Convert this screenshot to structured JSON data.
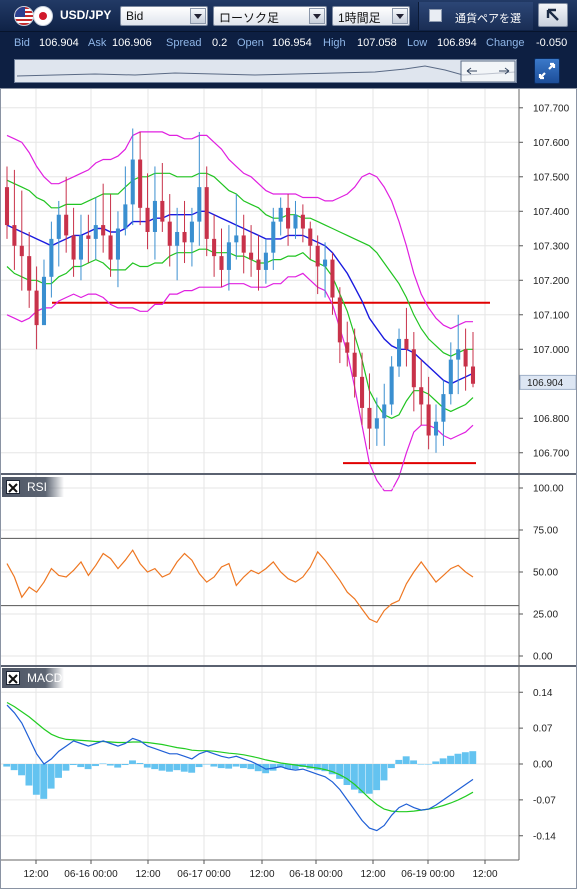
{
  "toolbar": {
    "pair": "USD/JPY",
    "price_type": "Bid",
    "chart_type": "ローソク足",
    "period": "1時間足",
    "pair_toggle_label": "通貨ペアを選"
  },
  "quote": {
    "bid_label": "Bid",
    "bid": "106.904",
    "ask_label": "Ask",
    "ask": "106.906",
    "spread_label": "Spread",
    "spread": "0.2",
    "open_label": "Open",
    "open": "106.954",
    "high_label": "High",
    "high": "107.058",
    "low_label": "Low",
    "low": "106.894",
    "change_label": "Change",
    "change": "-0.050"
  },
  "panels": {
    "rsi_title": "RSI",
    "macd_title": "MACD"
  },
  "colors": {
    "up_candle": "#3a8fd0",
    "down_candle": "#c8324a",
    "bollinger_outer": "#e020e0",
    "bollinger_inner": "#21c421",
    "sma": "#1a1adf",
    "hline": "#e00000",
    "rsi": "#ee7722",
    "macd_line": "#1f5fd6",
    "signal_line": "#22cc22",
    "histogram": "#64c3f0"
  },
  "chart_data": [
    {
      "type": "candlestick",
      "y_ticks": [
        "107.700",
        "107.600",
        "107.500",
        "107.400",
        "107.300",
        "107.200",
        "107.100",
        "107.000",
        "106.800",
        "106.700"
      ],
      "ylim": [
        106.65,
        107.74
      ],
      "current_price": "106.904",
      "x_ticks": [
        "12:00",
        "06-16 00:00",
        "12:00",
        "06-17 00:00",
        "12:00",
        "06-18 00:00",
        "12:00",
        "06-19 00:00",
        "12:00"
      ],
      "horizontal_lines": [
        107.135,
        106.67
      ],
      "candles": [
        [
          107.47,
          107.53,
          107.32,
          107.36
        ],
        [
          107.36,
          107.52,
          107.23,
          107.3
        ],
        [
          107.3,
          107.46,
          107.17,
          107.27
        ],
        [
          107.27,
          107.34,
          107.12,
          107.17
        ],
        [
          107.17,
          107.24,
          107.0,
          107.07
        ],
        [
          107.07,
          107.26,
          107.08,
          107.21
        ],
        [
          107.21,
          107.37,
          107.15,
          107.32
        ],
        [
          107.32,
          107.43,
          107.24,
          107.39
        ],
        [
          107.39,
          107.5,
          107.28,
          107.33
        ],
        [
          107.33,
          107.41,
          107.21,
          107.26
        ],
        [
          107.26,
          107.39,
          107.2,
          107.33
        ],
        [
          107.33,
          107.39,
          107.25,
          107.32
        ],
        [
          107.32,
          107.44,
          107.26,
          107.36
        ],
        [
          107.36,
          107.48,
          107.28,
          107.33
        ],
        [
          107.33,
          107.45,
          107.21,
          107.26
        ],
        [
          107.26,
          107.4,
          107.18,
          107.35
        ],
        [
          107.35,
          107.53,
          107.33,
          107.42
        ],
        [
          107.42,
          107.64,
          107.36,
          107.55
        ],
        [
          107.55,
          107.63,
          107.36,
          107.41
        ],
        [
          107.41,
          107.51,
          107.29,
          107.34
        ],
        [
          107.34,
          107.53,
          107.26,
          107.43
        ],
        [
          107.43,
          107.54,
          107.34,
          107.37
        ],
        [
          107.37,
          107.45,
          107.24,
          107.3
        ],
        [
          107.3,
          107.41,
          107.2,
          107.34
        ],
        [
          107.34,
          107.43,
          107.25,
          107.31
        ],
        [
          107.31,
          107.41,
          107.24,
          107.37
        ],
        [
          107.37,
          107.63,
          107.3,
          107.47
        ],
        [
          107.47,
          107.53,
          107.27,
          107.32
        ],
        [
          107.32,
          107.39,
          107.21,
          107.27
        ],
        [
          107.27,
          107.35,
          107.18,
          107.23
        ],
        [
          107.23,
          107.36,
          107.17,
          107.31
        ],
        [
          107.31,
          107.45,
          107.26,
          107.33
        ],
        [
          107.33,
          107.39,
          107.22,
          107.28
        ],
        [
          107.28,
          107.36,
          107.21,
          107.26
        ],
        [
          107.26,
          107.33,
          107.17,
          107.23
        ],
        [
          107.23,
          107.32,
          107.19,
          107.28
        ],
        [
          107.28,
          107.41,
          107.23,
          107.37
        ],
        [
          107.37,
          107.44,
          107.33,
          107.41
        ],
        [
          107.41,
          107.45,
          107.3,
          107.35
        ],
        [
          107.35,
          107.43,
          107.32,
          107.39
        ],
        [
          107.39,
          107.42,
          107.31,
          107.35
        ],
        [
          107.35,
          107.37,
          107.26,
          107.3
        ],
        [
          107.3,
          107.33,
          107.16,
          107.24
        ],
        [
          107.24,
          107.31,
          107.15,
          107.26
        ],
        [
          107.26,
          107.28,
          107.1,
          107.15
        ],
        [
          107.15,
          107.18,
          106.96,
          107.02
        ],
        [
          107.02,
          107.08,
          106.95,
          106.99
        ],
        [
          106.99,
          107.06,
          106.86,
          106.92
        ],
        [
          106.92,
          106.99,
          106.78,
          106.83
        ],
        [
          106.83,
          106.93,
          106.71,
          106.77
        ],
        [
          106.77,
          106.86,
          106.72,
          106.8
        ],
        [
          106.8,
          106.9,
          106.72,
          106.84
        ],
        [
          106.84,
          106.98,
          106.81,
          106.95
        ],
        [
          106.95,
          107.06,
          106.92,
          107.03
        ],
        [
          107.03,
          107.12,
          106.95,
          107.0
        ],
        [
          107.0,
          107.05,
          106.82,
          106.89
        ],
        [
          106.89,
          106.97,
          106.78,
          106.84
        ],
        [
          106.84,
          106.92,
          106.71,
          106.75
        ],
        [
          106.75,
          106.84,
          106.7,
          106.79
        ],
        [
          106.79,
          106.91,
          106.72,
          106.87
        ],
        [
          106.87,
          107.02,
          106.84,
          106.97
        ],
        [
          106.97,
          107.1,
          106.87,
          107.0
        ],
        [
          107.0,
          107.06,
          106.88,
          106.95
        ],
        [
          106.95,
          107.05,
          106.89,
          106.9
        ]
      ],
      "sma": [
        107.36,
        107.35,
        107.34,
        107.33,
        107.32,
        107.31,
        107.3,
        107.31,
        107.32,
        107.33,
        107.33,
        107.34,
        107.35,
        107.35,
        107.34,
        107.34,
        107.35,
        107.37,
        107.37,
        107.37,
        107.38,
        107.38,
        107.39,
        107.39,
        107.39,
        107.39,
        107.4,
        107.4,
        107.39,
        107.38,
        107.37,
        107.36,
        107.35,
        107.34,
        107.33,
        107.32,
        107.32,
        107.32,
        107.33,
        107.33,
        107.33,
        107.32,
        107.31,
        107.3,
        107.28,
        107.25,
        107.22,
        107.18,
        107.14,
        107.09,
        107.06,
        107.03,
        107.01,
        107.0,
        107.0,
        106.99,
        106.97,
        106.95,
        106.93,
        106.91,
        106.9,
        106.91,
        106.92,
        106.93
      ],
      "bollinger_upper2": [
        107.62,
        107.61,
        107.6,
        107.57,
        107.53,
        107.5,
        107.48,
        107.48,
        107.49,
        107.5,
        107.51,
        107.52,
        107.54,
        107.55,
        107.55,
        107.56,
        107.58,
        107.62,
        107.63,
        107.63,
        107.63,
        107.63,
        107.62,
        107.62,
        107.61,
        107.61,
        107.62,
        107.62,
        107.6,
        107.58,
        107.55,
        107.53,
        107.51,
        107.5,
        107.48,
        107.46,
        107.45,
        107.45,
        107.45,
        107.45,
        107.44,
        107.44,
        107.44,
        107.43,
        107.43,
        107.44,
        107.45,
        107.47,
        107.5,
        107.51,
        107.5,
        107.47,
        107.43,
        107.37,
        107.3,
        107.22,
        107.16,
        107.12,
        107.09,
        107.07,
        107.06,
        107.07,
        107.08,
        107.08
      ],
      "bollinger_upper1": [
        107.49,
        107.48,
        107.47,
        107.46,
        107.44,
        107.43,
        107.41,
        107.41,
        107.42,
        107.42,
        107.42,
        107.43,
        107.44,
        107.45,
        107.45,
        107.45,
        107.47,
        107.49,
        107.5,
        107.5,
        107.51,
        107.51,
        107.51,
        107.5,
        107.5,
        107.5,
        107.51,
        107.51,
        107.5,
        107.48,
        107.46,
        107.45,
        107.43,
        107.42,
        107.41,
        107.39,
        107.38,
        107.38,
        107.39,
        107.39,
        107.38,
        107.38,
        107.37,
        107.36,
        107.35,
        107.34,
        107.33,
        107.32,
        107.31,
        107.3,
        107.28,
        107.25,
        107.22,
        107.19,
        107.15,
        107.1,
        107.06,
        107.03,
        107.01,
        106.99,
        106.98,
        106.99,
        107.0,
        107.0
      ],
      "bollinger_lower1": [
        107.24,
        107.22,
        107.21,
        107.2,
        107.2,
        107.19,
        107.19,
        107.21,
        107.22,
        107.24,
        107.24,
        107.25,
        107.26,
        107.25,
        107.23,
        107.23,
        107.23,
        107.25,
        107.24,
        107.24,
        107.25,
        107.25,
        107.27,
        107.28,
        107.28,
        107.28,
        107.29,
        107.29,
        107.28,
        107.28,
        107.28,
        107.27,
        107.27,
        107.26,
        107.25,
        107.25,
        107.26,
        107.26,
        107.27,
        107.27,
        107.28,
        107.26,
        107.25,
        107.24,
        107.21,
        107.16,
        107.11,
        107.04,
        106.97,
        106.88,
        106.84,
        106.81,
        106.8,
        106.81,
        106.85,
        106.88,
        106.88,
        106.87,
        106.85,
        106.83,
        106.82,
        106.83,
        106.84,
        106.86
      ],
      "bollinger_lower2": [
        107.1,
        107.09,
        107.08,
        107.09,
        107.11,
        107.12,
        107.12,
        107.14,
        107.15,
        107.16,
        107.15,
        107.16,
        107.16,
        107.15,
        107.13,
        107.12,
        107.12,
        107.12,
        107.11,
        107.11,
        107.13,
        107.13,
        107.16,
        107.16,
        107.17,
        107.17,
        107.18,
        107.18,
        107.18,
        107.18,
        107.19,
        107.19,
        107.19,
        107.18,
        107.18,
        107.18,
        107.19,
        107.19,
        107.21,
        107.21,
        107.22,
        107.2,
        107.18,
        107.17,
        107.13,
        107.06,
        106.99,
        106.89,
        106.78,
        106.67,
        106.62,
        106.59,
        106.59,
        106.63,
        106.7,
        106.76,
        106.78,
        106.78,
        106.77,
        106.75,
        106.74,
        106.75,
        106.76,
        106.78
      ]
    },
    {
      "type": "line",
      "title": "RSI",
      "y_ticks": [
        "100.00",
        "75.00",
        "50.00",
        "25.00",
        "0.00"
      ],
      "ylim": [
        0,
        100
      ],
      "reference_lines": [
        70,
        30
      ],
      "values": [
        55,
        47,
        35,
        41,
        38,
        44,
        52,
        48,
        47,
        51,
        56,
        48,
        54,
        61,
        58,
        52,
        57,
        63,
        55,
        50,
        52,
        47,
        49,
        56,
        61,
        57,
        49,
        44,
        47,
        53,
        55,
        42,
        47,
        51,
        49,
        52,
        56,
        50,
        46,
        44,
        47,
        53,
        62,
        57,
        51,
        45,
        38,
        34,
        28,
        22,
        20,
        27,
        31,
        33,
        43,
        50,
        56,
        50,
        44,
        48,
        52,
        54,
        50,
        47
      ]
    },
    {
      "type": "bar+line",
      "title": "MACD",
      "y_ticks": [
        "0.14",
        "0.07",
        "0.00",
        "-0.07",
        "-0.14"
      ],
      "ylim": [
        -0.16,
        0.16
      ],
      "macd": [
        0.115,
        0.1,
        0.08,
        0.05,
        0.02,
        0.0,
        0.01,
        0.025,
        0.035,
        0.045,
        0.04,
        0.035,
        0.04,
        0.045,
        0.04,
        0.035,
        0.04,
        0.05,
        0.045,
        0.035,
        0.03,
        0.025,
        0.02,
        0.02,
        0.015,
        0.01,
        0.02,
        0.025,
        0.02,
        0.015,
        0.012,
        0.015,
        0.01,
        0.005,
        -0.002,
        -0.01,
        -0.008,
        -0.005,
        -0.01,
        -0.012,
        -0.01,
        -0.015,
        -0.02,
        -0.025,
        -0.035,
        -0.05,
        -0.07,
        -0.09,
        -0.11,
        -0.125,
        -0.13,
        -0.12,
        -0.1,
        -0.085,
        -0.078,
        -0.085,
        -0.09,
        -0.088,
        -0.08,
        -0.07,
        -0.06,
        -0.05,
        -0.04,
        -0.03
      ],
      "signal": [
        0.12,
        0.112,
        0.102,
        0.092,
        0.08,
        0.068,
        0.058,
        0.052,
        0.048,
        0.047,
        0.046,
        0.045,
        0.044,
        0.044,
        0.043,
        0.042,
        0.042,
        0.043,
        0.043,
        0.042,
        0.04,
        0.038,
        0.035,
        0.032,
        0.03,
        0.027,
        0.026,
        0.026,
        0.025,
        0.023,
        0.021,
        0.02,
        0.018,
        0.015,
        0.012,
        0.008,
        0.005,
        0.002,
        0.0,
        -0.002,
        -0.004,
        -0.006,
        -0.008,
        -0.011,
        -0.015,
        -0.021,
        -0.029,
        -0.04,
        -0.053,
        -0.067,
        -0.079,
        -0.088,
        -0.092,
        -0.093,
        -0.093,
        -0.092,
        -0.09,
        -0.088,
        -0.085,
        -0.081,
        -0.076,
        -0.07,
        -0.063,
        -0.055
      ]
    }
  ]
}
